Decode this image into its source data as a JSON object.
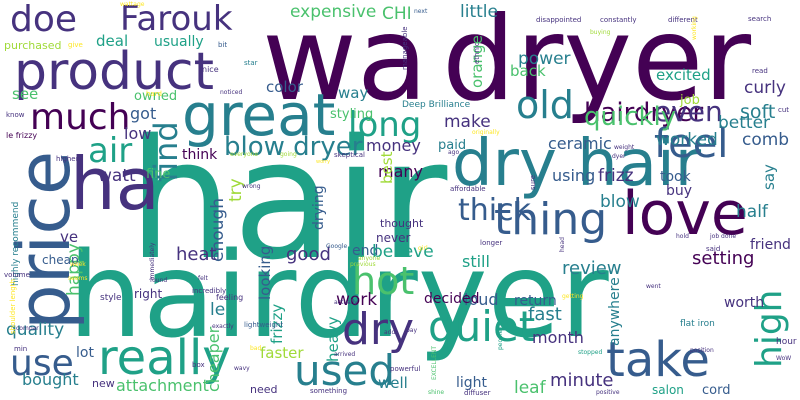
{
  "palette": {
    "purple_dark": "#440154",
    "indigo": "#46327e",
    "blue": "#365c8d",
    "steel": "#277f8e",
    "teal": "#1fa187",
    "green": "#4ac16d",
    "lime": "#a0da39",
    "yellow": "#fde725"
  },
  "words": [
    {
      "t": "hair"
    },
    {
      "t": "wa"
    },
    {
      "t": "dryer"
    },
    {
      "t": "hairdryer"
    },
    {
      "t": "product"
    },
    {
      "t": "great"
    },
    {
      "t": "dry hair"
    },
    {
      "t": "price"
    },
    {
      "t": "ha"
    },
    {
      "t": "love"
    },
    {
      "t": "much"
    },
    {
      "t": "feel"
    },
    {
      "t": "thing"
    },
    {
      "t": "take"
    },
    {
      "t": "really"
    },
    {
      "t": "quiet"
    },
    {
      "t": "dry"
    },
    {
      "t": "hot"
    },
    {
      "t": "long"
    },
    {
      "t": "old"
    },
    {
      "t": "used"
    },
    {
      "t": "use"
    },
    {
      "t": "high"
    },
    {
      "t": "doe"
    },
    {
      "t": "Farouk"
    },
    {
      "t": "air"
    },
    {
      "t": "find"
    },
    {
      "t": "thick"
    },
    {
      "t": "hairdryer"
    },
    {
      "t": "even"
    },
    {
      "t": "blow dryer"
    },
    {
      "t": "quickly"
    },
    {
      "t": "expensive"
    },
    {
      "t": "CHI"
    },
    {
      "t": "little"
    },
    {
      "t": "better"
    },
    {
      "t": "power"
    },
    {
      "t": "soft"
    },
    {
      "t": "curly"
    },
    {
      "t": "back"
    },
    {
      "t": "excited"
    },
    {
      "t": "orange"
    },
    {
      "t": "deal"
    },
    {
      "t": "usually"
    },
    {
      "t": "see"
    },
    {
      "t": "owned"
    },
    {
      "t": "way"
    },
    {
      "t": "color"
    },
    {
      "t": "make"
    },
    {
      "t": "got"
    },
    {
      "t": "low"
    },
    {
      "t": "styling"
    },
    {
      "t": "ceramic"
    },
    {
      "t": "comb"
    },
    {
      "t": "worked"
    },
    {
      "t": "money"
    },
    {
      "t": "paid"
    },
    {
      "t": "job"
    },
    {
      "t": "think"
    },
    {
      "t": "watt"
    },
    {
      "t": "fine"
    },
    {
      "t": "try"
    },
    {
      "t": "enough"
    },
    {
      "t": "drying"
    },
    {
      "t": "many"
    },
    {
      "t": "took"
    },
    {
      "t": "buy"
    },
    {
      "t": "using"
    },
    {
      "t": "frizz"
    },
    {
      "t": "say"
    },
    {
      "t": "blow"
    },
    {
      "t": "half"
    },
    {
      "t": "ve"
    },
    {
      "t": "heat"
    },
    {
      "t": "good"
    },
    {
      "t": "end"
    },
    {
      "t": "believe"
    },
    {
      "t": "still"
    },
    {
      "t": "review"
    },
    {
      "t": "setting"
    },
    {
      "t": "friend"
    },
    {
      "t": "happy"
    },
    {
      "t": "looking"
    },
    {
      "t": "loud"
    },
    {
      "t": "return"
    },
    {
      "t": "decided"
    },
    {
      "t": "work"
    },
    {
      "t": "worth"
    },
    {
      "t": "quality"
    },
    {
      "t": "le"
    },
    {
      "t": "frizzy"
    },
    {
      "t": "fast"
    },
    {
      "t": "month"
    },
    {
      "t": "anywhere"
    },
    {
      "t": "heavy"
    },
    {
      "t": "faster"
    },
    {
      "t": "cheaper"
    },
    {
      "t": "bought"
    },
    {
      "t": "attachment"
    },
    {
      "t": "lot"
    },
    {
      "t": "new"
    },
    {
      "t": "well"
    },
    {
      "t": "light"
    },
    {
      "t": "leaf"
    },
    {
      "t": "minute"
    },
    {
      "t": "salon"
    },
    {
      "t": "cord"
    },
    {
      "t": "need"
    },
    {
      "t": "cheap"
    },
    {
      "t": "right"
    },
    {
      "t": "style"
    },
    {
      "t": "best"
    },
    {
      "t": "never"
    },
    {
      "t": "thought"
    },
    {
      "t": "purchased"
    },
    {
      "t": "Deep Brilliance"
    },
    {
      "t": "highly recommend"
    },
    {
      "t": "shoulder length"
    },
    {
      "t": "le frizzy"
    },
    {
      "t": "flat iron"
    },
    {
      "t": "lightweight"
    },
    {
      "t": "hour"
    },
    {
      "t": "wattage"
    },
    {
      "t": "next"
    },
    {
      "t": "disappointed"
    },
    {
      "t": "constantly"
    },
    {
      "t": "different"
    },
    {
      "t": "give"
    },
    {
      "t": "bit"
    },
    {
      "t": "buying"
    },
    {
      "t": "manageable"
    },
    {
      "t": "star"
    },
    {
      "t": "nice"
    },
    {
      "t": "hard"
    },
    {
      "t": "noticed"
    },
    {
      "t": "ethnic"
    },
    {
      "t": "working"
    },
    {
      "t": "search"
    },
    {
      "t": "read"
    },
    {
      "t": "cut"
    },
    {
      "t": "know"
    },
    {
      "t": "originally"
    },
    {
      "t": "weight"
    },
    {
      "t": "dyer"
    },
    {
      "t": "higher"
    },
    {
      "t": "everyone"
    },
    {
      "t": "going"
    },
    {
      "t": "skeptical"
    },
    {
      "t": "worry"
    },
    {
      "t": "ago"
    },
    {
      "t": "affordable"
    },
    {
      "t": "sure"
    },
    {
      "t": "wrong"
    },
    {
      "t": "Google"
    },
    {
      "t": "hold"
    },
    {
      "t": "job done"
    },
    {
      "t": "said"
    },
    {
      "t": "longer"
    },
    {
      "t": "head"
    },
    {
      "t": "girl"
    },
    {
      "t": "anyone"
    },
    {
      "t": "previous"
    },
    {
      "t": "volume"
    },
    {
      "t": "week"
    },
    {
      "t": "felt"
    },
    {
      "t": "found"
    },
    {
      "t": "incredibly"
    },
    {
      "t": "went"
    },
    {
      "t": "immediately"
    },
    {
      "t": "feeling"
    },
    {
      "t": "actually"
    },
    {
      "t": "getting"
    },
    {
      "t": "EXCELLENT"
    },
    {
      "t": "people"
    },
    {
      "t": "pay"
    },
    {
      "t": "position"
    },
    {
      "t": "stopped"
    },
    {
      "t": "bad"
    },
    {
      "t": "add"
    },
    {
      "t": "exactly"
    },
    {
      "t": "box"
    },
    {
      "t": "arrived"
    },
    {
      "t": "wavy"
    },
    {
      "t": "powerful"
    },
    {
      "t": "shine"
    },
    {
      "t": "diffuser"
    },
    {
      "t": "positive"
    },
    {
      "t": "something"
    },
    {
      "t": "WoW"
    },
    {
      "t": "min"
    },
    {
      "t": "compar"
    },
    {
      "t": "seems"
    }
  ]
}
